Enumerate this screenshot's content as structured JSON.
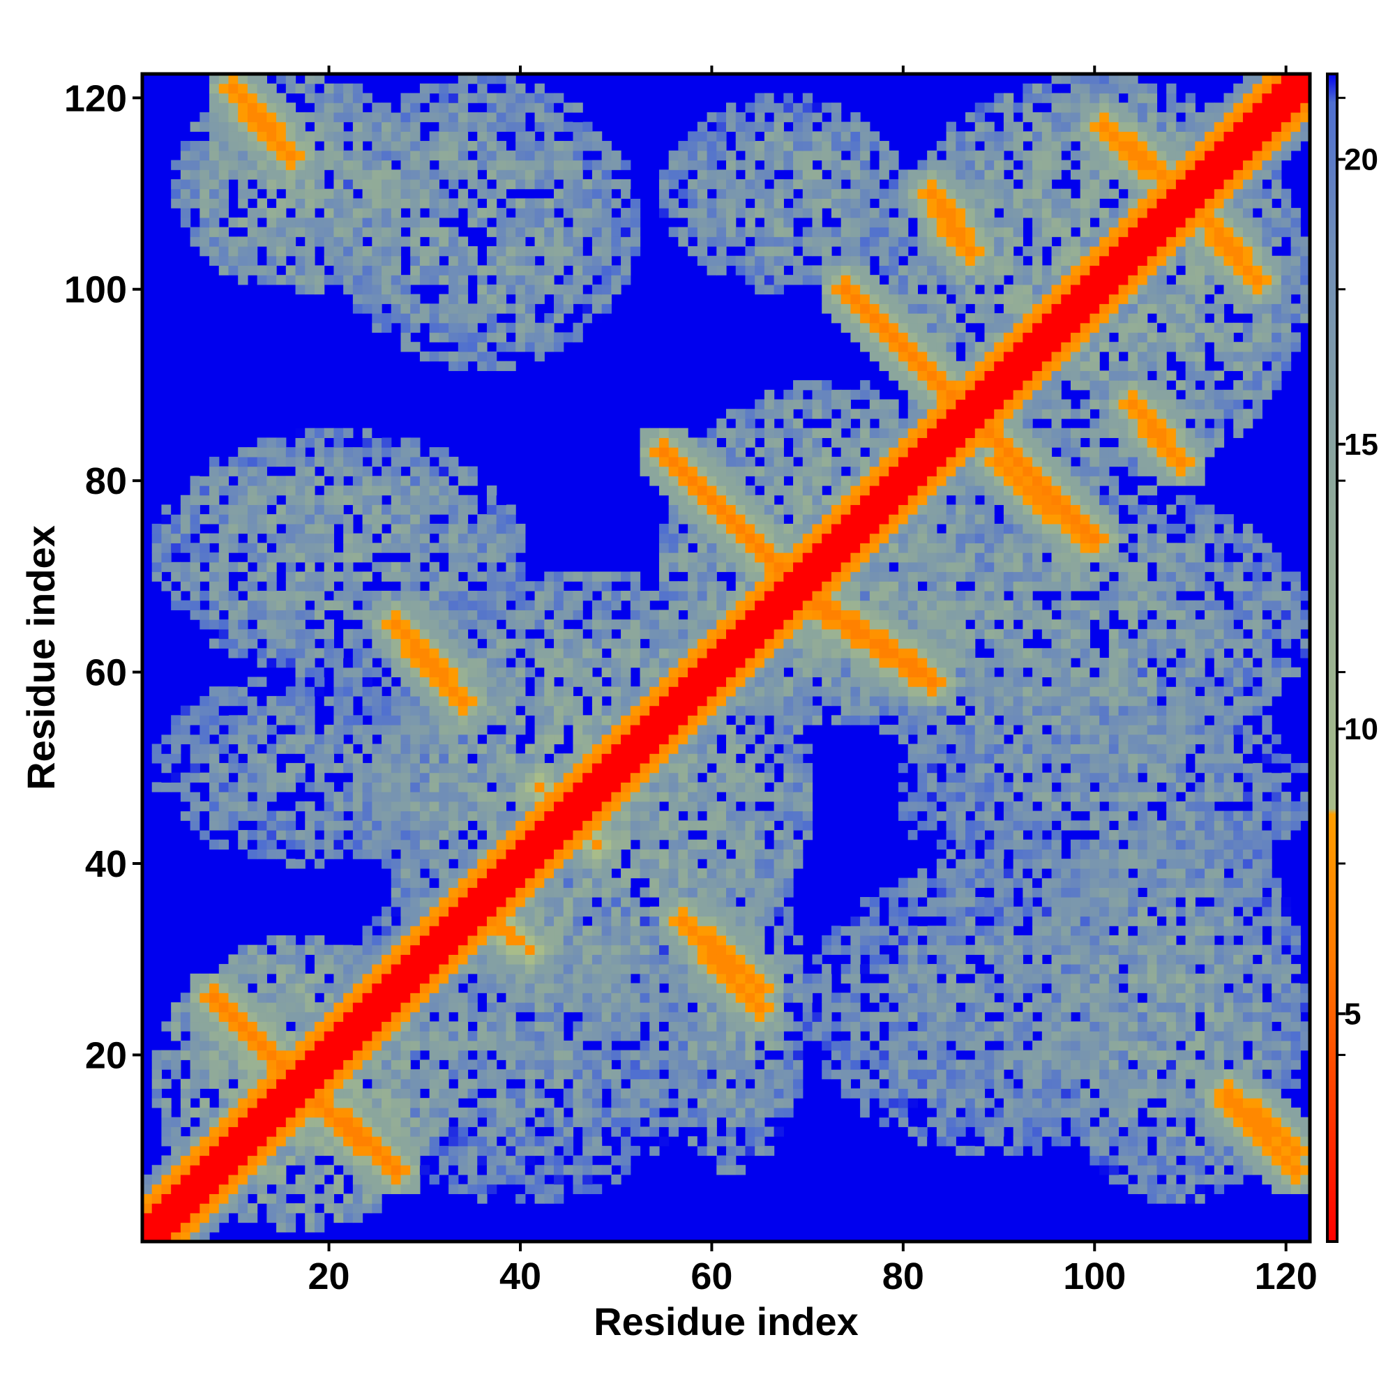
{
  "chart_data": {
    "type": "heatmap",
    "title": "",
    "xlabel": "Residue index",
    "ylabel": "Residue index",
    "n_residues": 122,
    "x_ticks": [
      20,
      40,
      60,
      80,
      100,
      120
    ],
    "y_ticks": [
      20,
      40,
      60,
      80,
      100,
      120
    ],
    "xlim": [
      0.5,
      122.5
    ],
    "ylim": [
      0.5,
      122.5
    ],
    "grid": false,
    "colorbar": {
      "placement": "right",
      "range": [
        1,
        21.5
      ],
      "ticks": [
        5,
        10,
        15,
        20
      ],
      "stops": [
        {
          "value": 1,
          "color": "#ff0000"
        },
        {
          "value": 6,
          "color": "#ff7a00"
        },
        {
          "value": 8.5,
          "color": "#ff9e00"
        },
        {
          "value": 8.6,
          "color": "#a8bc8a"
        },
        {
          "value": 14,
          "color": "#8fa99a"
        },
        {
          "value": 18.5,
          "color": "#6f8db8"
        },
        {
          "value": 21,
          "color": "#4f6fd0"
        },
        {
          "value": 21.5,
          "color": "#0000ee"
        }
      ]
    },
    "background_value": 25,
    "contact_bands": [
      {
        "name": "diagonal",
        "type": "line",
        "from": [
          1,
          1
        ],
        "to": [
          122,
          122
        ],
        "value": 1
      },
      {
        "name": "hairpin-1",
        "type": "line",
        "from": [
          8,
          26
        ],
        "to": [
          16,
          18
        ],
        "value": 6.5
      },
      {
        "name": "hairpin-1-sym",
        "type": "line",
        "from": [
          18,
          16
        ],
        "to": [
          27,
          8
        ],
        "value": 6.5
      },
      {
        "name": "strand-pair-a",
        "type": "line",
        "from": [
          10,
          121
        ],
        "to": [
          16,
          114
        ],
        "value": 7
      },
      {
        "name": "strand-pair-a-sym",
        "type": "line",
        "from": [
          114,
          16
        ],
        "to": [
          121,
          10
        ],
        "value": 7
      },
      {
        "name": "strand-pair-b",
        "type": "line",
        "from": [
          27,
          65
        ],
        "to": [
          34,
          57
        ],
        "value": 7
      },
      {
        "name": "strand-pair-b-sym",
        "type": "line",
        "from": [
          57,
          34
        ],
        "to": [
          65,
          27
        ],
        "value": 7
      },
      {
        "name": "strand-pair-c",
        "type": "line",
        "from": [
          57,
          34
        ],
        "to": [
          65,
          25
        ],
        "value": 7
      },
      {
        "name": "strand-pair-d",
        "type": "line",
        "from": [
          55,
          83
        ],
        "to": [
          68,
          70
        ],
        "value": 6.5
      },
      {
        "name": "strand-pair-d-sym",
        "type": "line",
        "from": [
          70,
          68
        ],
        "to": [
          83,
          59
        ],
        "value": 6.5
      },
      {
        "name": "strand-pair-e",
        "type": "line",
        "from": [
          74,
          100
        ],
        "to": [
          86,
          88
        ],
        "value": 6.5
      },
      {
        "name": "strand-pair-e-sym",
        "type": "line",
        "from": [
          88,
          86
        ],
        "to": [
          100,
          74
        ],
        "value": 6.5
      },
      {
        "name": "strand-pair-f",
        "type": "line",
        "from": [
          83,
          110
        ],
        "to": [
          87,
          104
        ],
        "value": 7
      },
      {
        "name": "strand-pair-g",
        "type": "line",
        "from": [
          101,
          117
        ],
        "to": [
          108,
          111
        ],
        "value": 7
      },
      {
        "name": "strand-pair-g-sym",
        "type": "line",
        "from": [
          111,
          108
        ],
        "to": [
          117,
          101
        ],
        "value": 7
      },
      {
        "name": "strand-pair-h",
        "type": "line",
        "from": [
          104,
          88
        ],
        "to": [
          109,
          82
        ],
        "value": 7
      },
      {
        "name": "strand-pair-i",
        "type": "line",
        "from": [
          114,
          15
        ],
        "to": [
          121,
          8
        ],
        "value": 7
      },
      {
        "name": "strand-pair-j",
        "type": "line",
        "from": [
          42,
          48
        ],
        "to": [
          48,
          42
        ],
        "value": 7.5
      },
      {
        "name": "strand-pair-k",
        "type": "line",
        "from": [
          36,
          35
        ],
        "to": [
          41,
          31
        ],
        "value": 7.5
      },
      {
        "name": "strand-pair-l",
        "type": "line",
        "from": [
          90,
          82
        ],
        "to": [
          99,
          74
        ],
        "value": 7
      }
    ],
    "mid_range_blocks": [
      {
        "x": [
          4,
          30
        ],
        "y": [
          100,
          122
        ],
        "value": 13
      },
      {
        "x": [
          20,
          52
        ],
        "y": [
          92,
          122
        ],
        "value": 14
      },
      {
        "x": [
          55,
          80
        ],
        "y": [
          100,
          120
        ],
        "value": 14
      },
      {
        "x": [
          78,
          122
        ],
        "y": [
          80,
          122
        ],
        "value": 13
      },
      {
        "x": [
          2,
          40
        ],
        "y": [
          60,
          85
        ],
        "value": 14
      },
      {
        "x": [
          25,
          70
        ],
        "y": [
          25,
          70
        ],
        "value": 13
      },
      {
        "x": [
          55,
          90
        ],
        "y": [
          55,
          90
        ],
        "value": 13
      },
      {
        "x": [
          2,
          32
        ],
        "y": [
          2,
          32
        ],
        "value": 12
      },
      {
        "x": [
          55,
          70
        ],
        "y": [
          8,
          40
        ],
        "value": 14
      },
      {
        "x": [
          70,
          122
        ],
        "y": [
          50,
          80
        ],
        "value": 14
      },
      {
        "x": [
          95,
          122
        ],
        "y": [
          5,
          45
        ],
        "value": 14
      },
      {
        "x": [
          20,
          60
        ],
        "y": [
          5,
          40
        ],
        "value": 15
      },
      {
        "x": [
          70,
          110
        ],
        "y": [
          10,
          40
        ],
        "value": 15
      },
      {
        "x": [
          2,
          35
        ],
        "y": [
          40,
          60
        ],
        "value": 15
      },
      {
        "x": [
          80,
          122
        ],
        "y": [
          35,
          60
        ],
        "value": 15
      }
    ]
  }
}
